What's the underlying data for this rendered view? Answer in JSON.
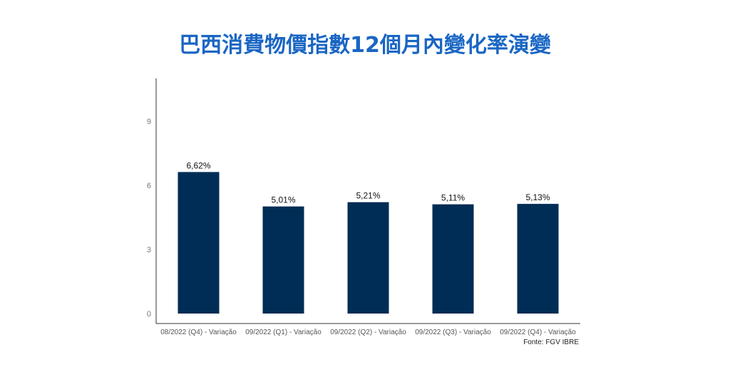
{
  "title": "巴西消費物價指數12個月內變化率演變",
  "source": "Fonte: FGV IBRE",
  "colors": {
    "title": "#1a66c4",
    "bar": "#002d55",
    "axis": "#333333"
  },
  "chart_data": {
    "type": "bar",
    "categories": [
      "08/2022 (Q4) - Variação",
      "09/2022 (Q1) - Variação",
      "09/2022 (Q2) - Variação",
      "09/2022 (Q3) - Variação",
      "09/2022 (Q4) - Variação"
    ],
    "values": [
      6.62,
      5.01,
      5.21,
      5.11,
      5.13
    ],
    "data_labels": [
      "6,62%",
      "5,01%",
      "5,21%",
      "5,11%",
      "5,13%"
    ],
    "yticks": [
      0,
      3,
      6,
      9
    ],
    "ylim": [
      0,
      11
    ],
    "grid": false
  }
}
